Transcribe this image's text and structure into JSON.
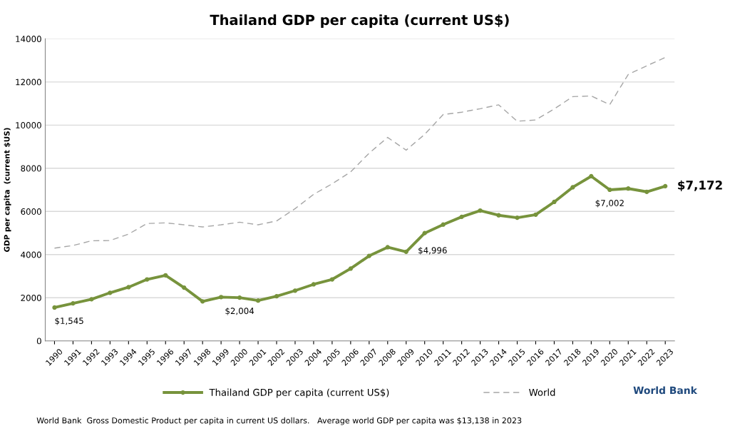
{
  "chart_data": {
    "type": "line",
    "title": "Thailand GDP per capita (current US$)",
    "ylabel": "GDP per capita  (current $US)",
    "categories": [
      "1990",
      "1991",
      "1992",
      "1993",
      "1994",
      "1995",
      "1996",
      "1997",
      "1998",
      "1999",
      "2000",
      "2001",
      "2002",
      "2003",
      "2004",
      "2005",
      "2006",
      "2007",
      "2008",
      "2009",
      "2010",
      "2011",
      "2012",
      "2013",
      "2014",
      "2015",
      "2016",
      "2017",
      "2018",
      "2019",
      "2020",
      "2021",
      "2022",
      "2023"
    ],
    "series": [
      {
        "name": "Thailand GDP per capita (current US$)",
        "color": "#77933c",
        "marker": "circle",
        "line_style": "solid",
        "values": [
          1545,
          1740,
          1930,
          2230,
          2490,
          2850,
          3040,
          2470,
          1830,
          2030,
          2004,
          1870,
          2070,
          2330,
          2620,
          2850,
          3350,
          3940,
          4340,
          4130,
          4996,
          5390,
          5750,
          6040,
          5820,
          5710,
          5850,
          6440,
          7120,
          7630,
          7002,
          7060,
          6910,
          7172
        ]
      },
      {
        "name": "World",
        "color": "#a6a6a6",
        "marker": "none",
        "line_style": "dashed",
        "values": [
          4300,
          4420,
          4640,
          4650,
          4950,
          5440,
          5470,
          5380,
          5280,
          5380,
          5500,
          5380,
          5560,
          6130,
          6790,
          7280,
          7830,
          8700,
          9430,
          8840,
          9570,
          10490,
          10600,
          10760,
          10940,
          10180,
          10240,
          10750,
          11320,
          11350,
          10950,
          12350,
          12750,
          13138
        ]
      }
    ],
    "ylim": [
      0,
      14000
    ],
    "yticks": [
      0,
      2000,
      4000,
      6000,
      8000,
      10000,
      12000,
      14000
    ],
    "grid": "y",
    "legend": "bottom",
    "annotations": [
      {
        "text": "$1,545",
        "x": "1990",
        "y": 1545
      },
      {
        "text": "$2,004",
        "x": "2000",
        "y": 2004
      },
      {
        "text": "$4,996",
        "x": "2010",
        "y": 4996
      },
      {
        "text": "$7,002",
        "x": "2020",
        "y": 7002
      },
      {
        "text": "$7,172",
        "x": "2023",
        "y": 7172
      },
      "World Bank",
      "World Bank  Gross Domestic Product per capita in current US dollars.   Average world GDP per capita was $13,138 in 2023"
    ]
  }
}
